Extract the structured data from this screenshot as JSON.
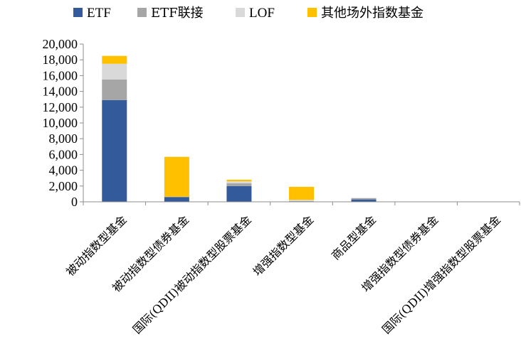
{
  "chart_data": {
    "type": "bar",
    "stacked": true,
    "categories": [
      "被动指数型基金",
      "被动指数型债券基金",
      "国际(QDII)被动指数型股票基金",
      "增强指数型基金",
      "商品型基金",
      "增强指数型债券基金",
      "国际(QDII)增强指数型股票基金"
    ],
    "series": [
      {
        "name": "ETF",
        "color": "#335A9A",
        "values": [
          12900,
          600,
          2000,
          0,
          300,
          0,
          0
        ]
      },
      {
        "name": "ETF联接",
        "color": "#A6A6A6",
        "values": [
          2600,
          50,
          350,
          100,
          150,
          0,
          0
        ]
      },
      {
        "name": "LOF",
        "color": "#D9D9D9",
        "values": [
          2000,
          0,
          250,
          150,
          50,
          0,
          0
        ]
      },
      {
        "name": "其他场外指数基金",
        "color": "#FFC000",
        "values": [
          1000,
          5050,
          200,
          1650,
          0,
          0,
          0
        ]
      }
    ],
    "ylim": [
      0,
      20000
    ],
    "yticks": [
      "20,000",
      "18,000",
      "16,000",
      "14,000",
      "12,000",
      "10,000",
      "8,000",
      "6,000",
      "4,000",
      "2,000",
      "0"
    ],
    "ytick_values": [
      20000,
      18000,
      16000,
      14000,
      12000,
      10000,
      8000,
      6000,
      4000,
      2000,
      0
    ],
    "legend_position": "top",
    "grid": false
  }
}
